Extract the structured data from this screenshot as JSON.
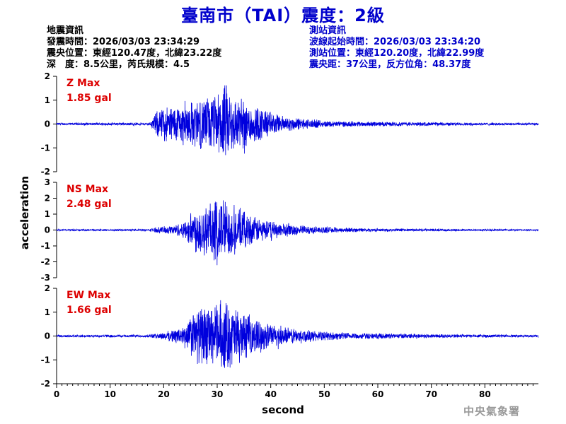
{
  "title": "臺南市（TAI）震度：2級",
  "info_left": {
    "heading": "地震資訊",
    "origin_time": "發震時間：2026/03/03 23:34:29",
    "epicenter": "震央位置：東經120.47度，北緯23.22度",
    "depth_magnitude": "深　度：8.5公里，芮氏規模：4.5"
  },
  "info_right": {
    "heading": "測站資訊",
    "wave_start": "波線起始時間：2026/03/03 23:34:20",
    "station_location": "測站位置：東經120.20度，北緯22.99度",
    "distance_azimuth": "震央距：37公里，反方位角：48.37度"
  },
  "credit": "中央氣象署",
  "colors": {
    "title": "#0000cc",
    "trace": "#0000dd",
    "max_label": "#dd0000",
    "axis": "#000000"
  },
  "chart_data": {
    "type": "line",
    "xlabel": "second",
    "ylabel": "acceleration",
    "xlim": [
      0,
      90
    ],
    "x_ticks": [
      "0",
      "10",
      "20",
      "30",
      "40",
      "50",
      "60",
      "70",
      "80"
    ],
    "panels": [
      {
        "component": "Z",
        "max_label": "Z Max",
        "max_value": "1.85 gal",
        "ylim": [
          -2,
          2
        ],
        "y_ticks": [
          "2",
          "1",
          "0",
          "-1",
          "-2"
        ],
        "envelope": {
          "x": [
            0,
            17.5,
            18.5,
            20,
            23,
            26,
            28,
            30,
            31.5,
            33,
            35,
            37,
            39,
            41,
            43,
            46,
            50,
            55,
            60,
            70,
            80,
            89
          ],
          "y": [
            0.05,
            0.06,
            0.55,
            0.8,
            0.9,
            1.1,
            1.25,
            1.35,
            1.85,
            1.35,
            1.1,
            0.9,
            0.7,
            0.45,
            0.35,
            0.25,
            0.15,
            0.12,
            0.1,
            0.08,
            0.06,
            0.05
          ]
        }
      },
      {
        "component": "NS",
        "max_label": "NS Max",
        "max_value": "2.48 gal",
        "ylim": [
          -3,
          3
        ],
        "y_ticks": [
          "3",
          "2",
          "1",
          "0",
          "-1",
          "-2",
          "-3"
        ],
        "envelope": {
          "x": [
            0,
            17,
            19,
            22,
            24,
            25.5,
            27,
            29,
            31,
            31.5,
            33,
            35,
            37,
            40,
            43,
            46,
            50,
            55,
            60,
            70,
            80,
            89
          ],
          "y": [
            0.05,
            0.06,
            0.2,
            0.35,
            0.6,
            1.4,
            1.9,
            2.0,
            2.48,
            2.1,
            1.6,
            1.3,
            0.9,
            0.6,
            0.45,
            0.3,
            0.22,
            0.15,
            0.1,
            0.08,
            0.06,
            0.05
          ]
        }
      },
      {
        "component": "EW",
        "max_label": "EW Max",
        "max_value": "1.66 gal",
        "ylim": [
          -2,
          2
        ],
        "y_ticks": [
          "2",
          "1",
          "0",
          "-1",
          "-2"
        ],
        "envelope": {
          "x": [
            0,
            17,
            19,
            22,
            24,
            25.5,
            27,
            29,
            31.5,
            33,
            35,
            37,
            40,
            43,
            46,
            50,
            55,
            60,
            70,
            80,
            89
          ],
          "y": [
            0.05,
            0.06,
            0.12,
            0.3,
            0.5,
            1.1,
            1.35,
            1.4,
            1.66,
            1.35,
            1.1,
            0.8,
            0.55,
            0.4,
            0.3,
            0.2,
            0.15,
            0.12,
            0.09,
            0.07,
            0.05
          ]
        }
      }
    ]
  }
}
